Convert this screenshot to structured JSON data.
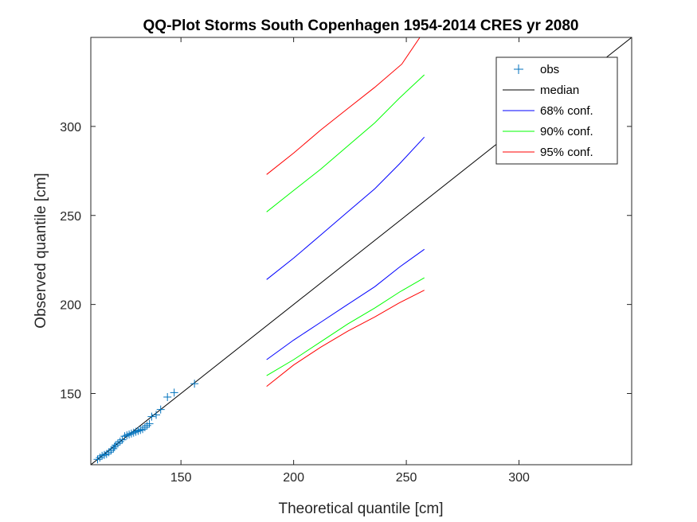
{
  "chart_data": {
    "type": "line",
    "title": "QQ-Plot Storms South Copenhagen 1954-2014 CRES yr 2080",
    "xlabel": "Theoretical quantile [cm]",
    "ylabel": "Observed quantile [cm]",
    "xlim": [
      110,
      350
    ],
    "ylim": [
      110,
      350
    ],
    "xticks": [
      150,
      200,
      250,
      300
    ],
    "yticks": [
      150,
      200,
      250,
      300
    ],
    "grid": false,
    "legend_location": "top-right",
    "median": {
      "name": "median",
      "color": "#000000",
      "x": [
        110,
        350
      ],
      "y": [
        110,
        350
      ]
    },
    "observations": {
      "name": "obs",
      "color": "#0072BD",
      "x": [
        113,
        114,
        115,
        116,
        117,
        118,
        119,
        120,
        120.5,
        121,
        122,
        123,
        124,
        125,
        126,
        127,
        128,
        129,
        130,
        131,
        132,
        133,
        134,
        135,
        136,
        137,
        139,
        141,
        144,
        147,
        156
      ],
      "y": [
        113,
        114,
        115,
        115.5,
        116,
        117,
        118,
        119,
        120,
        121,
        122,
        123,
        124,
        126,
        126.5,
        127,
        127.5,
        128,
        128.5,
        129,
        129.5,
        130,
        131,
        132,
        133,
        137,
        138,
        141,
        148,
        150.5,
        155.5
      ]
    },
    "series": [
      {
        "name": "68% conf.",
        "color": "#0000FF",
        "x": [
          188,
          200,
          212,
          224,
          236,
          247,
          258
        ],
        "y": [
          214,
          226,
          239,
          252,
          265,
          279,
          294
        ]
      },
      {
        "name": "68% conf.",
        "color": "#0000FF",
        "x": [
          188,
          200,
          212,
          224,
          236,
          247,
          258
        ],
        "y": [
          169,
          180,
          190,
          200,
          210,
          221,
          231
        ]
      },
      {
        "name": "90% conf.",
        "color": "#00FF00",
        "x": [
          188,
          200,
          212,
          224,
          236,
          247,
          258
        ],
        "y": [
          252,
          264,
          276,
          289,
          302,
          316,
          329
        ]
      },
      {
        "name": "90% conf.",
        "color": "#00FF00",
        "x": [
          188,
          200,
          212,
          224,
          236,
          247,
          258
        ],
        "y": [
          160,
          169,
          179,
          189,
          198,
          207,
          215
        ]
      },
      {
        "name": "95% conf.",
        "color": "#FF0000",
        "x": [
          188,
          200,
          212,
          224,
          236,
          248,
          256
        ],
        "y": [
          273,
          285,
          298,
          310,
          322,
          335,
          350
        ]
      },
      {
        "name": "95% conf.",
        "color": "#FF0000",
        "x": [
          188,
          200,
          212,
          224,
          236,
          247,
          258
        ],
        "y": [
          154,
          166,
          176,
          185,
          193,
          201,
          208
        ]
      }
    ],
    "legend": [
      {
        "label": "obs",
        "color": "#0072BD",
        "marker": "plus"
      },
      {
        "label": "median",
        "color": "#000000",
        "marker": "line"
      },
      {
        "label": "68% conf.",
        "color": "#0000FF",
        "marker": "line"
      },
      {
        "label": "90% conf.",
        "color": "#00FF00",
        "marker": "line"
      },
      {
        "label": "95% conf.",
        "color": "#FF0000",
        "marker": "line"
      }
    ]
  }
}
